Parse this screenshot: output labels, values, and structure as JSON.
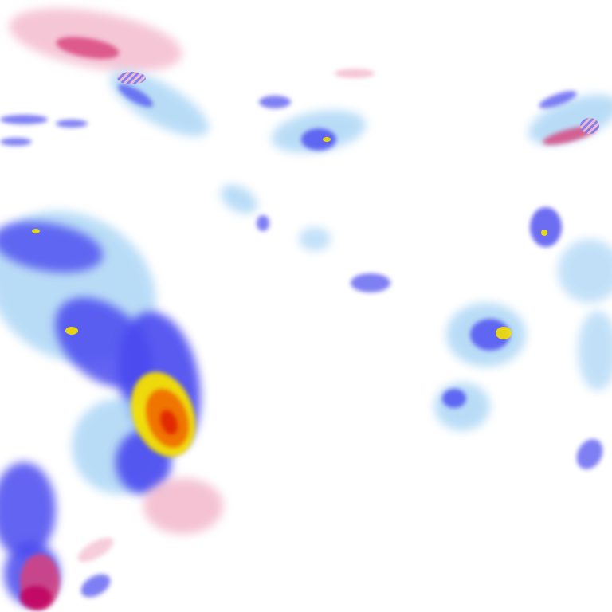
{
  "map": {
    "layer": "precipitation-radar",
    "colors": {
      "rain_light": "#a8d4f5",
      "rain_moderate": "#4a4af0",
      "rain_heavy": "#f5e000",
      "rain_very_heavy": "#f07000",
      "rain_extreme": "#e02000",
      "snow_light": "#f3b8cc",
      "snow_moderate": "#d8407a",
      "snow_heavy": "#c00060",
      "mixed": "#6a6af0"
    }
  }
}
